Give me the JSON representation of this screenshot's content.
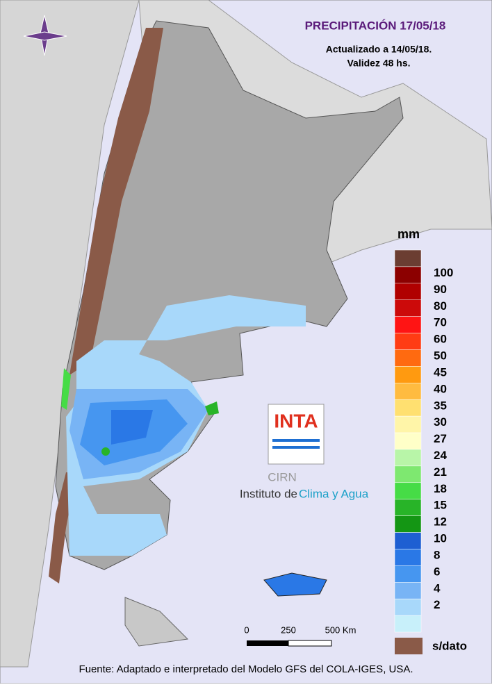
{
  "title": "PRECIPITACIÓN 17/05/18",
  "subtitle": [
    "Actualizado a 14/05/18.",
    "Validez 48 hs."
  ],
  "legend": {
    "unit": "mm",
    "levels": [
      100,
      90,
      80,
      70,
      60,
      50,
      45,
      40,
      35,
      30,
      27,
      24,
      21,
      18,
      15,
      12,
      10,
      8,
      6,
      4,
      2
    ],
    "colors": [
      "#6b3d32",
      "#8c0000",
      "#b00000",
      "#cc0a0a",
      "#ff1414",
      "#ff3c14",
      "#ff6a10",
      "#ff9a10",
      "#ffbb40",
      "#ffe070",
      "#fff5a8",
      "#ffffc8",
      "#b8f5a8",
      "#7ee870",
      "#46dc46",
      "#28b428",
      "#149614",
      "#1e5fd2",
      "#2a78e6",
      "#4696f0",
      "#78b4f5",
      "#a8d8fa",
      "#c8f0fa"
    ],
    "no_data": "s/dato"
  },
  "scale_bar": {
    "labels": [
      "0",
      "250",
      "500 Km"
    ]
  },
  "logo": {
    "name": "INTA",
    "org": "CIRN",
    "institute": "Instituto de",
    "institute_highlight": "Clima y Agua"
  },
  "source": "Fuente: Adaptado e interpretado del Modelo GFS del COLA-IGES, USA."
}
